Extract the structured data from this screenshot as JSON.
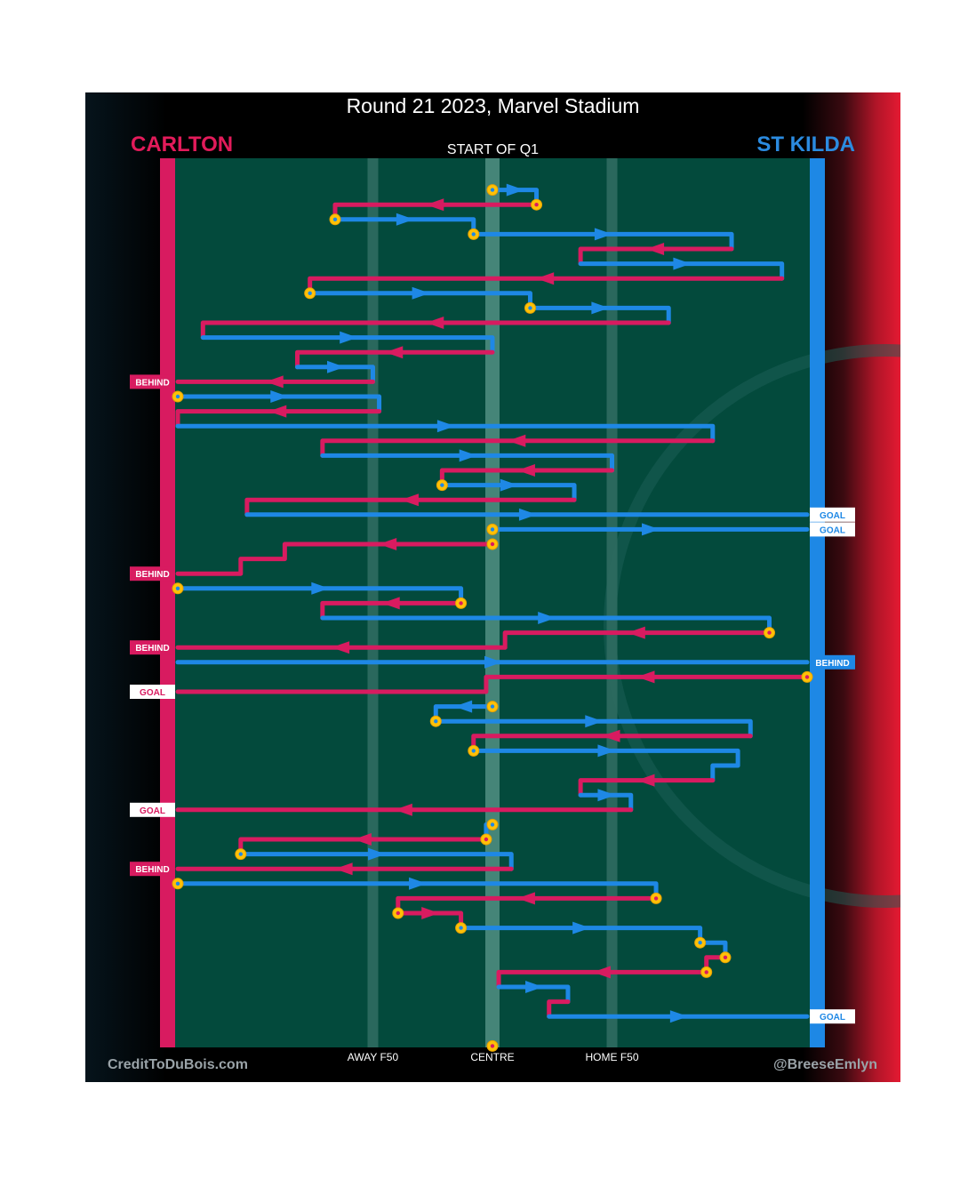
{
  "header": {
    "title": "Round 21 2023, Marvel Stadium",
    "team_left": "CARLTON",
    "team_right": "ST KILDA",
    "start_label": "START OF Q1"
  },
  "footer": {
    "credit_left": "CreditToDuBois.com",
    "credit_right": "@BreeseEmlyn"
  },
  "colors": {
    "carlton": "#d81b60",
    "st_kilda": "#1e88e5",
    "field": "#034a3c",
    "turnover_marker": "#ffc107"
  },
  "chart_data": {
    "type": "line",
    "description_axis": "x = field position, y = sequence of possession chains from top",
    "x_tick_labels": [
      {
        "label": "AWAY F50",
        "x": 0.31
      },
      {
        "label": "CENTRE",
        "x": 0.5
      },
      {
        "label": "HOME F50",
        "x": 0.69
      }
    ],
    "xlim": [
      0,
      1
    ],
    "ylim": [
      0,
      59
    ],
    "chains": [
      {
        "team": "STK",
        "points": [
          [
            0.5,
            1
          ],
          [
            0.57,
            1
          ],
          [
            0.57,
            2
          ]
        ],
        "start": true
      },
      {
        "team": "CAR",
        "points": [
          [
            0.57,
            2
          ],
          [
            0.25,
            2
          ],
          [
            0.25,
            3
          ]
        ],
        "start": true
      },
      {
        "team": "STK",
        "points": [
          [
            0.25,
            3
          ],
          [
            0.47,
            3
          ],
          [
            0.47,
            4
          ]
        ],
        "start": true
      },
      {
        "team": "STK",
        "points": [
          [
            0.47,
            4
          ],
          [
            0.88,
            4
          ],
          [
            0.88,
            5
          ]
        ],
        "start": true
      },
      {
        "team": "CAR",
        "points": [
          [
            0.88,
            5
          ],
          [
            0.64,
            5
          ],
          [
            0.64,
            6
          ]
        ]
      },
      {
        "team": "STK",
        "points": [
          [
            0.64,
            6
          ],
          [
            0.96,
            6
          ],
          [
            0.96,
            7
          ]
        ]
      },
      {
        "team": "CAR",
        "points": [
          [
            0.96,
            7
          ],
          [
            0.21,
            7
          ],
          [
            0.21,
            8
          ]
        ]
      },
      {
        "team": "STK",
        "points": [
          [
            0.21,
            8
          ],
          [
            0.56,
            8
          ],
          [
            0.56,
            9
          ]
        ],
        "start": true
      },
      {
        "team": "STK",
        "points": [
          [
            0.56,
            9
          ],
          [
            0.78,
            9
          ],
          [
            0.78,
            10
          ]
        ],
        "start": true
      },
      {
        "team": "CAR",
        "points": [
          [
            0.78,
            10
          ],
          [
            0.04,
            10
          ],
          [
            0.04,
            11
          ]
        ]
      },
      {
        "team": "STK",
        "points": [
          [
            0.04,
            11
          ],
          [
            0.5,
            11
          ],
          [
            0.5,
            12
          ]
        ]
      },
      {
        "team": "CAR",
        "points": [
          [
            0.5,
            12
          ],
          [
            0.19,
            12
          ],
          [
            0.19,
            13
          ]
        ]
      },
      {
        "team": "STK",
        "points": [
          [
            0.19,
            13
          ],
          [
            0.31,
            13
          ],
          [
            0.31,
            14
          ]
        ]
      },
      {
        "team": "CAR",
        "points": [
          [
            0.31,
            14
          ],
          [
            0.0,
            14
          ]
        ],
        "end": "BEHIND"
      },
      {
        "team": "STK",
        "points": [
          [
            0.0,
            15
          ],
          [
            0.32,
            15
          ],
          [
            0.32,
            16
          ]
        ],
        "start": true
      },
      {
        "team": "CAR",
        "points": [
          [
            0.32,
            16
          ],
          [
            0.0,
            16
          ],
          [
            0.0,
            17
          ]
        ]
      },
      {
        "team": "STK",
        "points": [
          [
            0.0,
            17
          ],
          [
            0.85,
            17
          ],
          [
            0.85,
            18
          ]
        ]
      },
      {
        "team": "CAR",
        "points": [
          [
            0.85,
            18
          ],
          [
            0.23,
            18
          ],
          [
            0.23,
            19
          ]
        ]
      },
      {
        "team": "STK",
        "points": [
          [
            0.23,
            19
          ],
          [
            0.69,
            19
          ],
          [
            0.69,
            20
          ]
        ]
      },
      {
        "team": "CAR",
        "points": [
          [
            0.69,
            20
          ],
          [
            0.42,
            20
          ],
          [
            0.42,
            21
          ]
        ]
      },
      {
        "team": "STK",
        "points": [
          [
            0.42,
            21
          ],
          [
            0.63,
            21
          ],
          [
            0.63,
            22
          ]
        ],
        "start": true
      },
      {
        "team": "CAR",
        "points": [
          [
            0.63,
            22
          ],
          [
            0.11,
            22
          ],
          [
            0.11,
            23
          ]
        ]
      },
      {
        "team": "STK",
        "points": [
          [
            0.11,
            23
          ],
          [
            1.0,
            23
          ]
        ],
        "end": "GOAL"
      },
      {
        "team": "STK",
        "points": [
          [
            0.5,
            24
          ],
          [
            1.0,
            24
          ]
        ],
        "end": "GOAL",
        "start": true
      },
      {
        "team": "CAR",
        "points": [
          [
            0.5,
            25
          ],
          [
            0.17,
            25
          ],
          [
            0.17,
            26
          ],
          [
            0.1,
            26
          ],
          [
            0.1,
            27
          ],
          [
            0.0,
            27
          ]
        ],
        "end": "BEHIND",
        "start": true
      },
      {
        "team": "STK",
        "points": [
          [
            0.0,
            28
          ],
          [
            0.45,
            28
          ],
          [
            0.45,
            29
          ]
        ],
        "start": true
      },
      {
        "team": "CAR",
        "points": [
          [
            0.45,
            29
          ],
          [
            0.23,
            29
          ],
          [
            0.23,
            30
          ]
        ],
        "start": true
      },
      {
        "team": "STK",
        "points": [
          [
            0.23,
            30
          ],
          [
            0.94,
            30
          ],
          [
            0.94,
            31
          ]
        ]
      },
      {
        "team": "CAR",
        "points": [
          [
            0.94,
            31
          ],
          [
            0.52,
            31
          ],
          [
            0.52,
            32
          ]
        ],
        "start": true
      },
      {
        "team": "CAR",
        "points": [
          [
            0.52,
            32
          ],
          [
            0.0,
            32
          ]
        ],
        "end": "BEHIND"
      },
      {
        "team": "STK",
        "points": [
          [
            0.0,
            33
          ],
          [
            1.0,
            33
          ]
        ],
        "end": "BEHIND"
      },
      {
        "team": "CAR",
        "points": [
          [
            1.0,
            34
          ],
          [
            0.49,
            34
          ],
          [
            0.49,
            35
          ],
          [
            0.0,
            35
          ]
        ],
        "end": "GOAL",
        "start": true
      },
      {
        "team": "STK",
        "points": [
          [
            0.5,
            36
          ],
          [
            0.41,
            36
          ],
          [
            0.41,
            37
          ]
        ],
        "start": true
      },
      {
        "team": "STK",
        "points": [
          [
            0.41,
            37
          ],
          [
            0.91,
            37
          ],
          [
            0.91,
            38
          ]
        ],
        "start": true
      },
      {
        "team": "CAR",
        "points": [
          [
            0.91,
            38
          ],
          [
            0.47,
            38
          ],
          [
            0.47,
            39
          ]
        ]
      },
      {
        "team": "STK",
        "points": [
          [
            0.47,
            39
          ],
          [
            0.89,
            39
          ],
          [
            0.89,
            40
          ]
        ],
        "start": true
      },
      {
        "team": "STK",
        "points": [
          [
            0.89,
            40
          ],
          [
            0.85,
            40
          ],
          [
            0.85,
            41
          ]
        ]
      },
      {
        "team": "CAR",
        "points": [
          [
            0.85,
            41
          ],
          [
            0.64,
            41
          ],
          [
            0.64,
            42
          ]
        ]
      },
      {
        "team": "STK",
        "points": [
          [
            0.64,
            42
          ],
          [
            0.72,
            42
          ],
          [
            0.72,
            43
          ]
        ]
      },
      {
        "team": "CAR",
        "points": [
          [
            0.72,
            43
          ],
          [
            0.0,
            43
          ]
        ],
        "end": "GOAL"
      },
      {
        "team": "STK",
        "points": [
          [
            0.5,
            44
          ],
          [
            0.49,
            44
          ],
          [
            0.49,
            45
          ]
        ],
        "start": true
      },
      {
        "team": "CAR",
        "points": [
          [
            0.49,
            45
          ],
          [
            0.1,
            45
          ],
          [
            0.1,
            46
          ]
        ],
        "start": true
      },
      {
        "team": "STK",
        "points": [
          [
            0.1,
            46
          ],
          [
            0.53,
            46
          ],
          [
            0.53,
            47
          ]
        ],
        "start": true
      },
      {
        "team": "CAR",
        "points": [
          [
            0.53,
            47
          ],
          [
            0.0,
            47
          ]
        ],
        "end": "BEHIND"
      },
      {
        "team": "STK",
        "points": [
          [
            0.0,
            48
          ],
          [
            0.76,
            48
          ],
          [
            0.76,
            49
          ]
        ],
        "start": true
      },
      {
        "team": "CAR",
        "points": [
          [
            0.76,
            49
          ],
          [
            0.35,
            49
          ],
          [
            0.35,
            50
          ]
        ],
        "start": true
      },
      {
        "team": "CAR",
        "points": [
          [
            0.35,
            50
          ],
          [
            0.45,
            50
          ],
          [
            0.45,
            51
          ]
        ],
        "start": true
      },
      {
        "team": "STK",
        "points": [
          [
            0.45,
            51
          ],
          [
            0.83,
            51
          ],
          [
            0.83,
            52
          ]
        ],
        "start": true
      },
      {
        "team": "STK",
        "points": [
          [
            0.83,
            52
          ],
          [
            0.87,
            52
          ],
          [
            0.87,
            53
          ]
        ],
        "start": true
      },
      {
        "team": "CAR",
        "points": [
          [
            0.87,
            53
          ],
          [
            0.84,
            53
          ],
          [
            0.84,
            54
          ]
        ],
        "start": true
      },
      {
        "team": "CAR",
        "points": [
          [
            0.84,
            54
          ],
          [
            0.51,
            54
          ],
          [
            0.51,
            55
          ]
        ],
        "start": true
      },
      {
        "team": "STK",
        "points": [
          [
            0.51,
            55
          ],
          [
            0.62,
            55
          ],
          [
            0.62,
            56
          ]
        ]
      },
      {
        "team": "CAR",
        "points": [
          [
            0.62,
            56
          ],
          [
            0.59,
            56
          ],
          [
            0.59,
            57
          ]
        ]
      },
      {
        "team": "STK",
        "points": [
          [
            0.59,
            57
          ],
          [
            1.0,
            57
          ]
        ],
        "end": "GOAL"
      },
      {
        "team": "CAR",
        "points": [
          [
            0.5,
            59
          ],
          [
            0.5,
            59
          ]
        ],
        "start": true
      }
    ],
    "labels": {
      "goal": "GOAL",
      "behind": "BEHIND"
    }
  }
}
